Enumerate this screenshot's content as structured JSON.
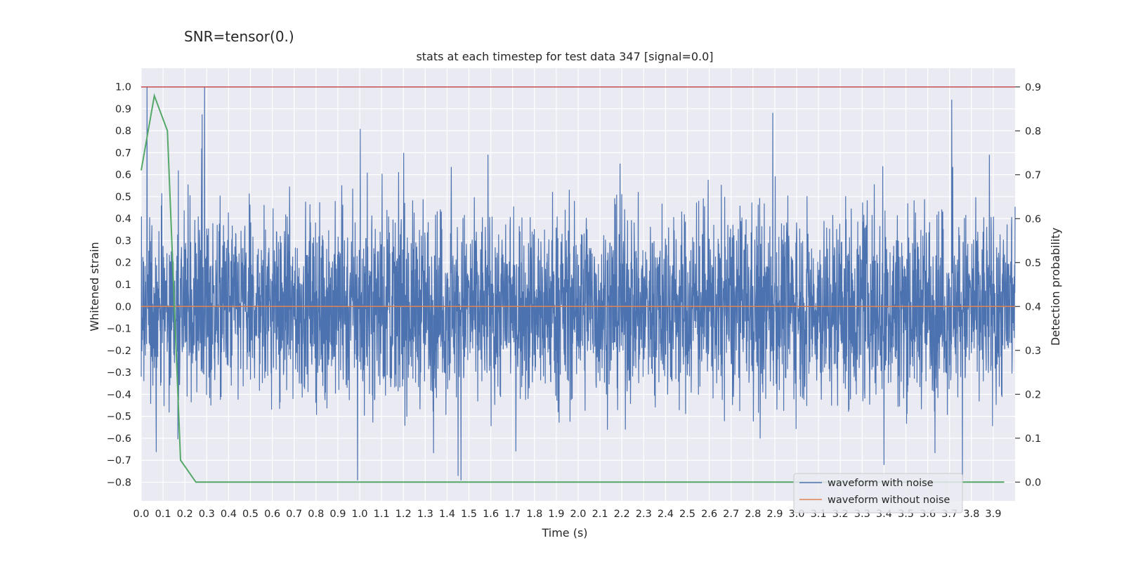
{
  "suptitle": "SNR=tensor(0.)",
  "chart_data": {
    "type": "line",
    "title": "stats at each timestep for test data 347 [signal=0.0]",
    "xlabel": "Time (s)",
    "ylabel_left": "Whitened strain",
    "ylabel_right": "Detection probability",
    "xlim": [
      0.0,
      4.0
    ],
    "ylim_left": [
      -0.885,
      1.085
    ],
    "ylim_right": [
      -0.0428,
      0.9428
    ],
    "x_ticks": [
      0.0,
      0.1,
      0.2,
      0.3,
      0.4,
      0.5,
      0.6,
      0.7,
      0.8,
      0.9,
      1.0,
      1.1,
      1.2,
      1.3,
      1.4,
      1.5,
      1.6,
      1.7,
      1.8,
      1.9,
      2.0,
      2.1,
      2.2,
      2.3,
      2.4,
      2.5,
      2.6,
      2.7,
      2.8,
      2.9,
      3.0,
      3.1,
      3.2,
      3.3,
      3.4,
      3.5,
      3.6,
      3.7,
      3.8,
      3.9
    ],
    "x_tick_labels": [
      "0.0",
      "0.1",
      "0.2",
      "0.3",
      "0.4",
      "0.5",
      "0.6",
      "0.7",
      "0.8",
      "0.9",
      "1.0",
      "1.1",
      "1.2",
      "1.3",
      "1.4",
      "1.5",
      "1.6",
      "1.7",
      "1.8",
      "1.9",
      "2.0",
      "2.1",
      "2.2",
      "2.3",
      "2.4",
      "2.5",
      "2.6",
      "2.7",
      "2.8",
      "2.9",
      "3.0",
      "3.1",
      "3.2",
      "3.3",
      "3.4",
      "3.5",
      "3.6",
      "3.7",
      "3.8",
      "3.9"
    ],
    "y_left_ticks": [
      1.0,
      0.9,
      0.8,
      0.7,
      0.6,
      0.5,
      0.4,
      0.3,
      0.2,
      0.1,
      0.0,
      -0.1,
      -0.2,
      -0.3,
      -0.4,
      -0.5,
      -0.6,
      -0.7,
      -0.8
    ],
    "y_left_tick_labels": [
      "1.0",
      "0.9",
      "0.8",
      "0.7",
      "0.6",
      "0.5",
      "0.4",
      "0.3",
      "0.2",
      "0.1",
      "0.0",
      "−0.1",
      "−0.2",
      "−0.3",
      "−0.4",
      "−0.5",
      "−0.6",
      "−0.7",
      "−0.8"
    ],
    "y_right_ticks": [
      0.9,
      0.8,
      0.7,
      0.6,
      0.5,
      0.4,
      0.3,
      0.2,
      0.1,
      0.0
    ],
    "y_right_tick_labels": [
      "0.9",
      "0.8",
      "0.7",
      "0.6",
      "0.5",
      "0.4",
      "0.3",
      "0.2",
      "0.1",
      "0.0"
    ],
    "threshold_line": {
      "axis": "right",
      "value": 0.9,
      "color": "#c44e52"
    },
    "series": [
      {
        "name": "waveform with noise",
        "axis": "left",
        "color": "#4c72b0",
        "kind": "dense_noise",
        "x_range": [
          0.0,
          4.0
        ],
        "y_range": [
          -0.79,
          1.0
        ],
        "description_peaks": [
          {
            "x": 0.29,
            "y": 1.0
          },
          {
            "x": 3.71,
            "y": 0.94
          },
          {
            "x": 0.99,
            "y": -0.79
          },
          {
            "x": 1.45,
            "y": -0.77
          },
          {
            "x": 3.4,
            "y": -0.72
          }
        ]
      },
      {
        "name": "waveform without noise",
        "axis": "left",
        "color": "#dd8452",
        "x": [
          0.0,
          4.0
        ],
        "y": [
          0.0,
          0.0
        ]
      },
      {
        "name": "detection probability",
        "axis": "right",
        "color": "#55a868",
        "x": [
          0.0,
          0.06,
          0.12,
          0.18,
          0.25,
          3.95
        ],
        "y": [
          0.71,
          0.88,
          0.8,
          0.05,
          0.0,
          0.0
        ]
      }
    ],
    "legend": {
      "placement": "lower-right",
      "entries": [
        {
          "label": "waveform with noise",
          "color": "#4c72b0"
        },
        {
          "label": "waveform without noise",
          "color": "#dd8452"
        }
      ]
    },
    "grid": true,
    "background": "#eaeaf2"
  }
}
